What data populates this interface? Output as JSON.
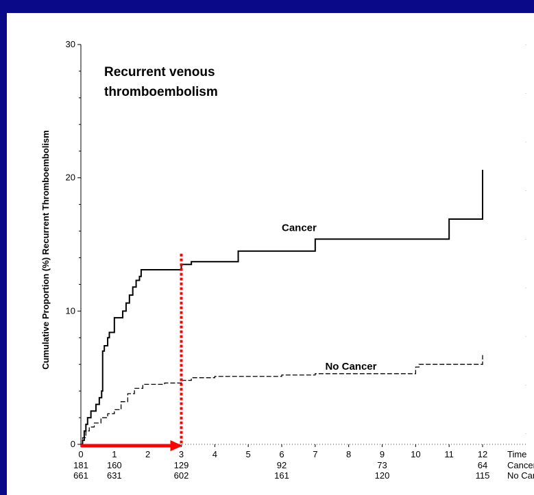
{
  "chart_data": {
    "type": "line",
    "title": "Recurrent venous thromboembolism",
    "ylabel": "Cumulative Proportion (%) Recurrent Thromboembolism",
    "xlabel_row": "Time",
    "xlim": [
      0,
      12
    ],
    "ylim": [
      0,
      30
    ],
    "x_ticks": [
      0,
      1,
      2,
      3,
      4,
      5,
      6,
      7,
      8,
      9,
      10,
      11,
      12
    ],
    "y_ticks": [
      0,
      10,
      20,
      30
    ],
    "series": [
      {
        "name": "Cancer",
        "style": "solid",
        "color": "#000000",
        "label_at": [
          6.0,
          16.0
        ],
        "steps": [
          [
            0,
            0
          ],
          [
            0.05,
            0.3
          ],
          [
            0.1,
            1.0
          ],
          [
            0.15,
            1.5
          ],
          [
            0.2,
            2.0
          ],
          [
            0.3,
            2.5
          ],
          [
            0.45,
            3.0
          ],
          [
            0.55,
            3.5
          ],
          [
            0.62,
            4.0
          ],
          [
            0.65,
            7.0
          ],
          [
            0.7,
            7.4
          ],
          [
            0.8,
            8.0
          ],
          [
            0.85,
            8.4
          ],
          [
            0.95,
            8.4
          ],
          [
            1.0,
            9.5
          ],
          [
            1.2,
            9.5
          ],
          [
            1.25,
            10.0
          ],
          [
            1.35,
            10.6
          ],
          [
            1.45,
            11.2
          ],
          [
            1.55,
            11.8
          ],
          [
            1.65,
            12.3
          ],
          [
            1.75,
            12.6
          ],
          [
            1.8,
            13.1
          ],
          [
            2.9,
            13.1
          ],
          [
            3.0,
            13.5
          ],
          [
            3.3,
            13.7
          ],
          [
            4.7,
            14.5
          ],
          [
            7.0,
            15.4
          ],
          [
            11.0,
            16.9
          ],
          [
            12.0,
            20.6
          ]
        ],
        "end_x": 12.0
      },
      {
        "name": "No Cancer",
        "style": "dashed",
        "color": "#000000",
        "label_at": [
          7.3,
          5.6
        ],
        "steps": [
          [
            0,
            0
          ],
          [
            0.05,
            0.5
          ],
          [
            0.15,
            1.0
          ],
          [
            0.25,
            1.3
          ],
          [
            0.4,
            1.6
          ],
          [
            0.6,
            2.0
          ],
          [
            0.8,
            2.3
          ],
          [
            1.0,
            2.6
          ],
          [
            1.2,
            3.2
          ],
          [
            1.4,
            3.8
          ],
          [
            1.6,
            4.2
          ],
          [
            1.85,
            4.5
          ],
          [
            2.5,
            4.6
          ],
          [
            3.0,
            4.8
          ],
          [
            3.3,
            5.0
          ],
          [
            4.0,
            5.1
          ],
          [
            6.0,
            5.2
          ],
          [
            7.0,
            5.3
          ],
          [
            10.0,
            5.8
          ],
          [
            10.1,
            6.0
          ],
          [
            12.0,
            6.7
          ]
        ],
        "end_x": 12.0
      }
    ],
    "numbers_at_risk": {
      "x": [
        0,
        1,
        3,
        6,
        9,
        12
      ],
      "rows": [
        {
          "label": "Cancer",
          "values": [
            "181",
            "160",
            "129",
            "92",
            "73",
            "64"
          ]
        },
        {
          "label": "No Cancer",
          "values": [
            "661",
            "631",
            "602",
            "161",
            "120",
            "115"
          ]
        }
      ]
    },
    "annotations": {
      "red_vertical_dotted_x": 3.0,
      "red_vertical_top_y": 14.3,
      "red_arrow_from_x": 0,
      "red_arrow_to_x": 3.0,
      "red_color": "#ff0000"
    },
    "grid": false
  }
}
